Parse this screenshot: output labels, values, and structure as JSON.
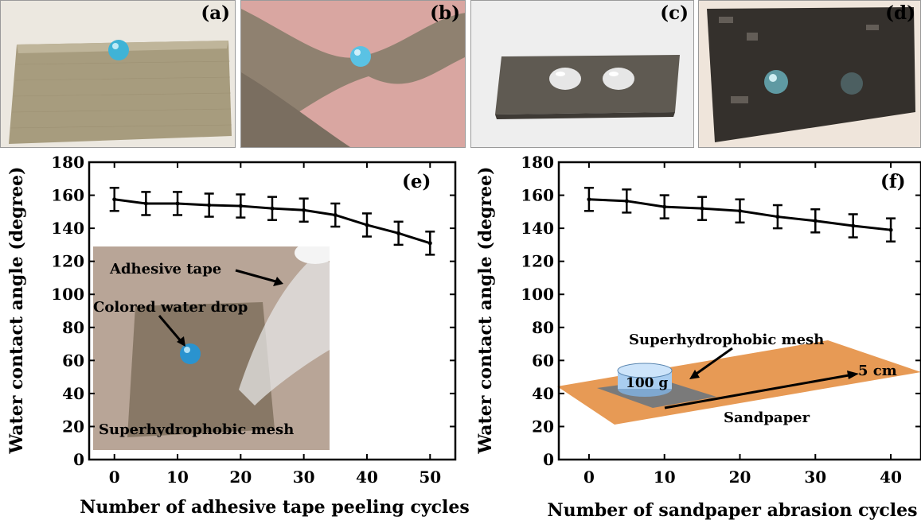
{
  "panels": {
    "a": {
      "label": "(a)",
      "colors": {
        "background": "#ece8e0",
        "mesh": "#a79c7e",
        "drop": "#3fb3d6"
      }
    },
    "b": {
      "label": "(b)",
      "colors": {
        "background": "#d9a6a1",
        "mesh": "#8f8170",
        "drop": "#5ac2e4"
      }
    },
    "c": {
      "label": "(c)",
      "colors": {
        "background": "#eeeeee",
        "mesh": "#5f5a52",
        "drop": "#e6e6e6"
      }
    },
    "d": {
      "label": "(d)",
      "colors": {
        "background": "#efe5db",
        "mesh": "#34302c",
        "drop": "#5f9aa3"
      }
    }
  },
  "chart_data": [
    {
      "type": "line",
      "panel_label": "(e)",
      "xlabel": "Number of adhesive tape peeling cycles",
      "ylabel": "Water contact angle (degree)",
      "x": [
        0,
        5,
        10,
        15,
        20,
        25,
        30,
        35,
        40,
        45,
        50
      ],
      "series": [
        {
          "values": [
            157.5,
            155,
            155,
            154,
            153.5,
            152,
            151,
            148,
            142,
            137,
            131
          ],
          "error": [
            7,
            7,
            7,
            7,
            7,
            7,
            7,
            7,
            7,
            7,
            7
          ]
        }
      ],
      "xticks": [
        0,
        10,
        20,
        30,
        40,
        50
      ],
      "yticks": [
        0,
        20,
        40,
        60,
        80,
        100,
        120,
        140,
        160,
        180
      ],
      "xlim": [
        -4,
        54
      ],
      "ylim": [
        0,
        180
      ],
      "grid": false,
      "line_color": "#000000",
      "inset": {
        "type": "photo",
        "annotations": [
          "Adhesive tape",
          "Colored water drop",
          "Superhydrophobic mesh"
        ],
        "colors": {
          "background": "#b8a597",
          "mesh": "#887866",
          "drop": "#2a93cf"
        }
      }
    },
    {
      "type": "line",
      "panel_label": "(f)",
      "xlabel": "Number of sandpaper abrasion cycles",
      "ylabel": "Water contact angle (degree)",
      "x": [
        0,
        5,
        10,
        15,
        20,
        25,
        30,
        35,
        40
      ],
      "series": [
        {
          "values": [
            157.5,
            156.5,
            153,
            152,
            150.5,
            147,
            144.5,
            141.5,
            139
          ],
          "error": [
            7,
            7,
            7,
            7,
            7,
            7,
            7,
            7,
            7
          ]
        }
      ],
      "xticks": [
        0,
        10,
        20,
        30,
        40
      ],
      "yticks": [
        0,
        20,
        40,
        60,
        80,
        100,
        120,
        140,
        160,
        180
      ],
      "xlim": [
        -4,
        44
      ],
      "ylim": [
        0,
        180
      ],
      "grid": false,
      "line_color": "#000000",
      "inset": {
        "type": "diagram",
        "annotations": [
          "Superhydrophobic mesh",
          "100 g",
          "5 cm",
          "Sandpaper"
        ],
        "colors": {
          "sandpaper": "#e79a55",
          "mesh": "#7a7a7a",
          "weight": "#a9cdf0"
        }
      }
    }
  ]
}
